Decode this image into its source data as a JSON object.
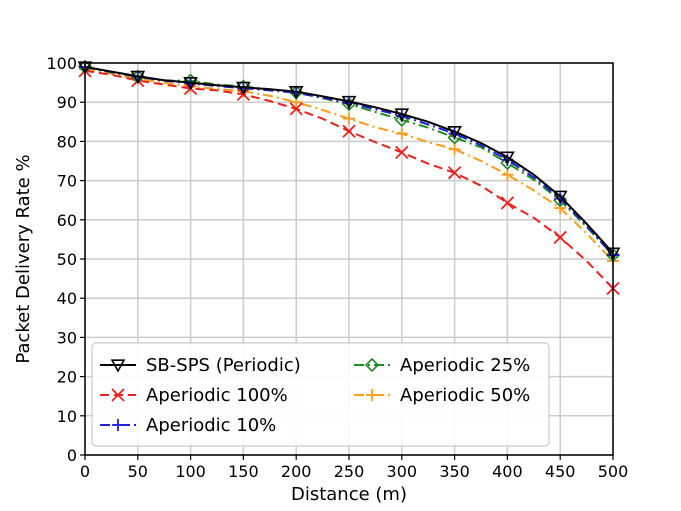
{
  "chart_data": {
    "type": "line",
    "title": "",
    "xlabel": "Distance (m)",
    "ylabel": "Packet Delivery Rate %",
    "xlim": [
      0,
      500
    ],
    "ylim": [
      0,
      100
    ],
    "xticks": [
      "0",
      "50",
      "100",
      "150",
      "200",
      "250",
      "300",
      "350",
      "400",
      "450",
      "500"
    ],
    "yticks": [
      "0",
      "10",
      "20",
      "30",
      "40",
      "50",
      "60",
      "70",
      "80",
      "90",
      "100"
    ],
    "grid": true,
    "legend_position": "bottom-left",
    "x": [
      0,
      25,
      50,
      75,
      100,
      125,
      150,
      175,
      200,
      225,
      250,
      275,
      300,
      325,
      350,
      375,
      400,
      425,
      450,
      475,
      500
    ],
    "series": [
      {
        "name": "SB-SPS (Periodic)",
        "color": "#000000",
        "linestyle": "solid",
        "marker": "triangle-down",
        "values": [
          99,
          97.8,
          96.6,
          95.6,
          95,
          94.3,
          93.8,
          93.3,
          92.7,
          91.5,
          90.2,
          88.7,
          87,
          85,
          82.5,
          79.6,
          76,
          71.5,
          66,
          59,
          51.5
        ]
      },
      {
        "name": "Aperiodic 100%",
        "color": "#e8221f",
        "linestyle": "dashed",
        "marker": "x",
        "values": [
          98,
          97,
          95.5,
          94.5,
          93.5,
          93,
          92,
          90.3,
          88.3,
          85.8,
          82.6,
          79.8,
          77.2,
          74.3,
          72,
          68.7,
          64.3,
          60.5,
          55.5,
          49.5,
          42.5
        ]
      },
      {
        "name": "Aperiodic 10%",
        "color": "#1f1fd6",
        "linestyle": "dashdot",
        "marker": "plus",
        "values": [
          99,
          97.7,
          96.5,
          95.5,
          94.8,
          94.1,
          93.6,
          93,
          92.4,
          91.2,
          89.8,
          88.2,
          86.5,
          84.3,
          82,
          79,
          75.3,
          70.8,
          65.4,
          58.5,
          51
        ]
      },
      {
        "name": "Aperiodic 25%",
        "color": "#228b22",
        "linestyle": "dashdot",
        "marker": "diamond",
        "values": [
          99,
          97.6,
          96.5,
          95.5,
          95.5,
          94.5,
          94,
          93.3,
          92.5,
          91,
          89.5,
          87.5,
          85.5,
          83.5,
          81,
          78.5,
          74.5,
          70.2,
          65,
          58.2,
          51
        ]
      },
      {
        "name": "Aperiodic 50%",
        "color": "#ff9c1a",
        "linestyle": "dashdot",
        "marker": "plus",
        "values": [
          98.5,
          97.3,
          96,
          95,
          94,
          93.4,
          92.8,
          91.6,
          90,
          88,
          85.8,
          83.6,
          82,
          79.8,
          78,
          75,
          71.5,
          67.5,
          63,
          56.5,
          49.5
        ]
      }
    ],
    "marker_x": [
      0,
      50,
      100,
      150,
      200,
      250,
      300,
      350,
      400,
      450,
      500
    ],
    "legend_order": [
      0,
      1,
      2,
      3,
      4
    ]
  }
}
